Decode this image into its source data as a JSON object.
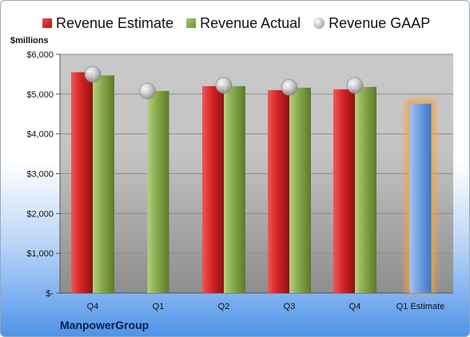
{
  "legend": {
    "estimate": "Revenue Estimate",
    "actual": "Revenue Actual",
    "gaap": "Revenue GAAP"
  },
  "unit_label": "$millions",
  "company": "ManpowerGroup",
  "colors": {
    "estimate": "#d42424",
    "actual": "#86a84a",
    "gaap": "#b5b5b5",
    "forecast": "#6a9be0",
    "forecast_glow": "#f5a340",
    "plot_background": "#c8c8c8"
  },
  "chart_data": {
    "type": "bar",
    "categories": [
      "Q4",
      "Q1",
      "Q2",
      "Q3",
      "Q4",
      "Q1 Estimate"
    ],
    "series": [
      {
        "name": "Revenue Estimate",
        "values": [
          5550,
          null,
          5200,
          5100,
          5120,
          4760
        ]
      },
      {
        "name": "Revenue Actual",
        "values": [
          5470,
          5080,
          5200,
          5160,
          5180,
          null
        ]
      },
      {
        "name": "Revenue GAAP",
        "type": "scatter",
        "values": [
          5500,
          5080,
          5220,
          5170,
          5220,
          null
        ]
      }
    ],
    "forecast_category": "Q1 Estimate",
    "ylim": [
      0,
      6000
    ],
    "yticks": [
      {
        "value": 0,
        "label": "$-"
      },
      {
        "value": 1000,
        "label": "$1,000"
      },
      {
        "value": 2000,
        "label": "$2,000"
      },
      {
        "value": 3000,
        "label": "$3,000"
      },
      {
        "value": 4000,
        "label": "$4,000"
      },
      {
        "value": 5000,
        "label": "$5,000"
      },
      {
        "value": 6000,
        "label": "$6,000"
      }
    ],
    "grid": true,
    "legend_position": "top"
  }
}
